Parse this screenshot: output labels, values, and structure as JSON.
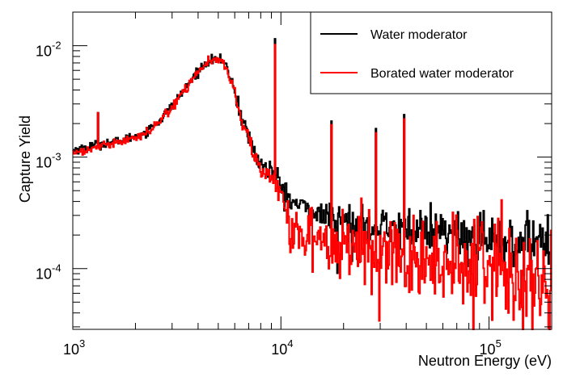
{
  "chart_data": {
    "type": "line",
    "title": "",
    "xlabel": "Neutron Energy (eV)",
    "ylabel": "Capture Yield",
    "xscale": "log",
    "yscale": "log",
    "xlim": [
      1000,
      200000
    ],
    "ylim": [
      2.85e-05,
      0.02
    ],
    "x_major_ticks": [
      {
        "value": 1000,
        "base": "10",
        "exp": "3"
      },
      {
        "value": 10000,
        "base": "10",
        "exp": "4"
      },
      {
        "value": 100000,
        "base": "10",
        "exp": "5"
      }
    ],
    "y_major_ticks": [
      {
        "value": 0.0001,
        "base": "10",
        "exp": "-4"
      },
      {
        "value": 0.001,
        "base": "10",
        "exp": "-3"
      },
      {
        "value": 0.01,
        "base": "10",
        "exp": "-2"
      }
    ],
    "legend_position": "top-right",
    "series": [
      {
        "name": "Water moderator",
        "color": "#000000",
        "x": [
          1000,
          1200,
          1500,
          1800,
          2200,
          2600,
          3000,
          3500,
          4000,
          4500,
          5000,
          5400,
          5800,
          6200,
          6600,
          7000,
          7500,
          8000,
          8500,
          9000,
          9400,
          9600,
          10000,
          11000,
          12000,
          14000,
          17000,
          20000,
          25000,
          30000,
          40000,
          50000,
          70000,
          100000,
          140000,
          200000
        ],
        "values": [
          0.00115,
          0.00125,
          0.00135,
          0.00145,
          0.00165,
          0.0021,
          0.0029,
          0.0042,
          0.006,
          0.0073,
          0.0077,
          0.0068,
          0.0048,
          0.0031,
          0.0021,
          0.0015,
          0.0011,
          0.00085,
          0.0008,
          0.00075,
          0.0007,
          0.00065,
          0.00055,
          0.00042,
          0.00037,
          0.00033,
          0.00029,
          0.00027,
          0.00025,
          0.00024,
          0.00023,
          0.00021,
          0.0002,
          0.00019,
          0.00018,
          0.00017
        ],
        "peaks": [
          {
            "x": 1320,
            "y": 0.0025
          },
          {
            "x": 9400,
            "y": 0.0115
          },
          {
            "x": 17500,
            "y": 0.0021
          },
          {
            "x": 28500,
            "y": 0.0018
          },
          {
            "x": 39000,
            "y": 0.0024
          }
        ]
      },
      {
        "name": "Borated water moderator",
        "color": "#ff0000",
        "x": [
          1000,
          1200,
          1500,
          1800,
          2200,
          2600,
          3000,
          3500,
          4000,
          4500,
          5000,
          5400,
          5800,
          6200,
          6600,
          7000,
          7500,
          8000,
          8500,
          9000,
          9400,
          9600,
          10000,
          11000,
          12000,
          14000,
          17000,
          20000,
          25000,
          30000,
          40000,
          50000,
          70000,
          100000,
          140000,
          200000
        ],
        "values": [
          0.00108,
          0.00118,
          0.00128,
          0.0014,
          0.0016,
          0.00205,
          0.0028,
          0.0041,
          0.0059,
          0.0072,
          0.0076,
          0.0066,
          0.0046,
          0.0029,
          0.00195,
          0.0014,
          0.001,
          0.00078,
          0.00072,
          0.00066,
          0.0006,
          0.00052,
          0.00042,
          0.00028,
          0.00022,
          0.000195,
          0.00017,
          0.000155,
          0.000145,
          0.00014,
          0.00013,
          0.000115,
          0.000105,
          9.5e-05,
          8.5e-05,
          7.5e-05
        ],
        "peaks": [
          {
            "x": 1320,
            "y": 0.0025
          },
          {
            "x": 9400,
            "y": 0.0102
          },
          {
            "x": 17500,
            "y": 0.00195
          },
          {
            "x": 28500,
            "y": 0.00165
          },
          {
            "x": 39000,
            "y": 0.0022
          }
        ]
      }
    ]
  }
}
